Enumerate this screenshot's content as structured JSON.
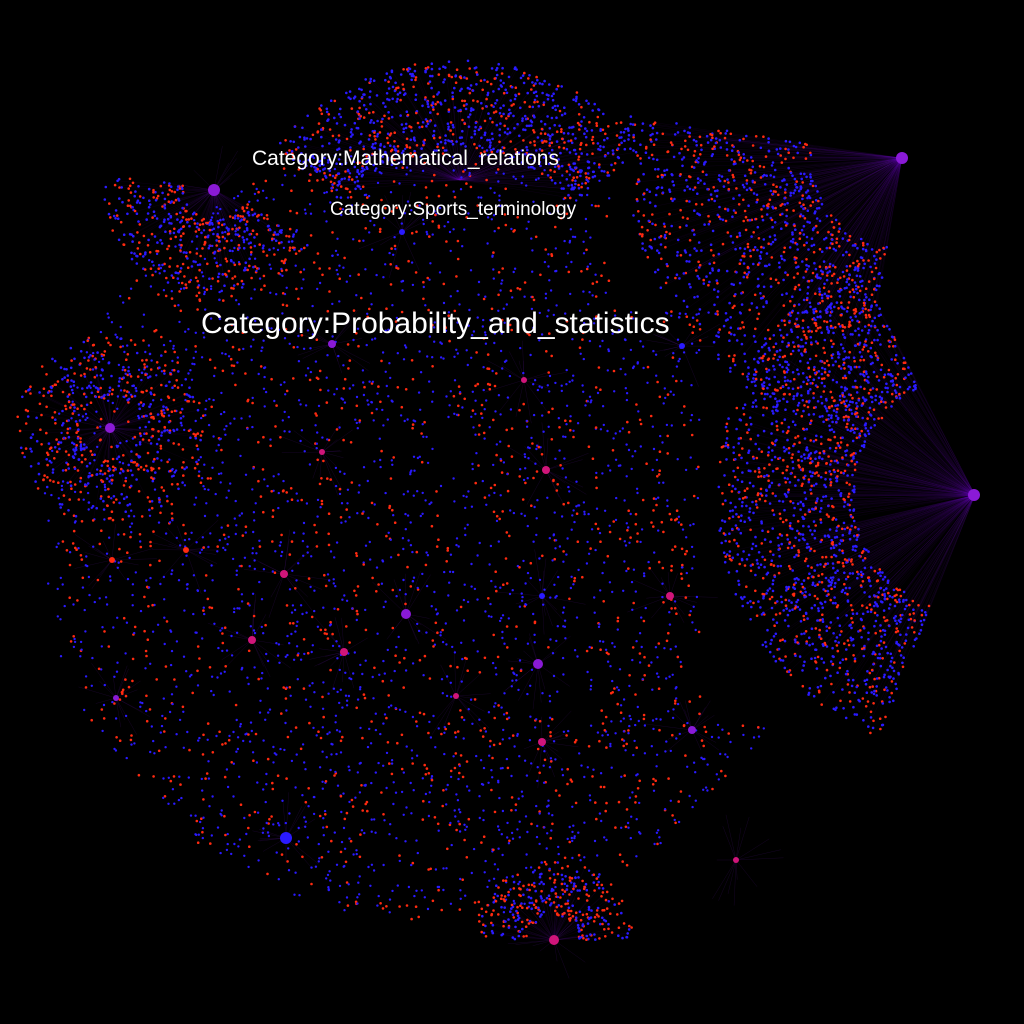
{
  "graph": {
    "labels": {
      "mathematical_relations": "Category:Mathematical_relations",
      "sports_terminology": "Category:Sports_terminology",
      "probability_and_statistics": "Category:Probability_and_statistics"
    },
    "colors": {
      "background": "#000000",
      "node_blue": "#2a1aff",
      "node_red": "#ff2a10",
      "hub_purple": "#8a1ad6",
      "hub_magenta": "#d0157a",
      "edge": "#7a1ad0",
      "label": "#ffffff"
    }
  }
}
